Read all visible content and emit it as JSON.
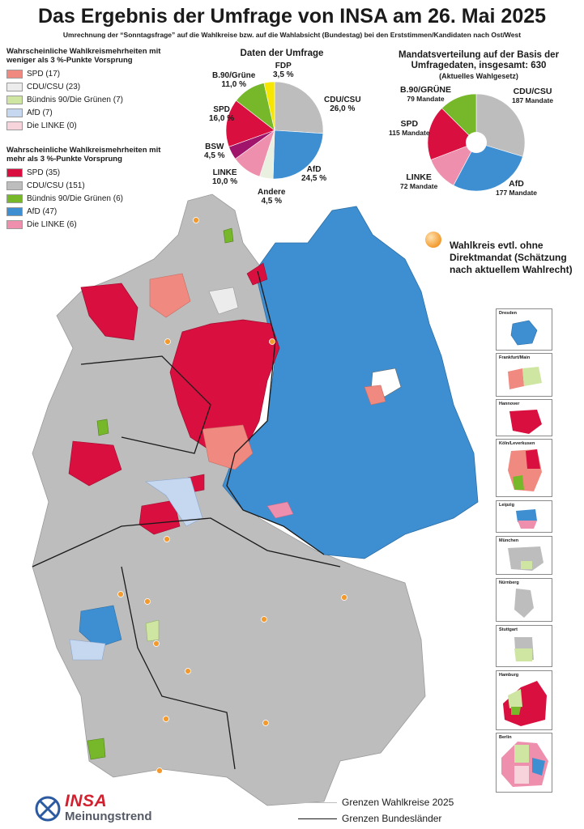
{
  "title": "Das Ergebnis der Umfrage von INSA am 26. Mai 2025",
  "subtitle": "Umrechnung der “Sonntagsfrage” auf die Wahlkreise bzw. auf die Wahlabsicht (Bundestag) bei den Erststimmen/Kandidaten nach Ost/West",
  "legend_narrow": {
    "heading": "Wahrscheinliche Wahlkreismehrheiten mit weniger als 3 %-Punkte Vorsprung",
    "items": [
      {
        "label": "SPD (17)",
        "color": "#f08a80"
      },
      {
        "label": "CDU/CSU (23)",
        "color": "#ececec"
      },
      {
        "label": "Bündnis 90/Die Grünen (7)",
        "color": "#cfe6a3"
      },
      {
        "label": "AfD (7)",
        "color": "#c6d8f0"
      },
      {
        "label": "Die LINKE (0)",
        "color": "#f7d3dc"
      }
    ]
  },
  "legend_wide": {
    "heading": "Wahrscheinliche Wahlkreismehrheiten mit mehr als 3 %-Punkte Vorsprung",
    "items": [
      {
        "label": "SPD (35)",
        "color": "#d9103f"
      },
      {
        "label": "CDU/CSU (151)",
        "color": "#bdbdbd"
      },
      {
        "label": "Bündnis 90/Die Grünen (6)",
        "color": "#77b82a"
      },
      {
        "label": "AfD (47)",
        "color": "#3e8fd1"
      },
      {
        "label": "Die LINKE (6)",
        "color": "#ef8fae"
      }
    ]
  },
  "poll": {
    "heading": "Daten der Umfrage",
    "slices": [
      {
        "party": "CDU/CSU",
        "value": "26,0 %",
        "share": 26.0,
        "color": "#bdbdbd"
      },
      {
        "party": "AfD",
        "value": "24,5 %",
        "share": 24.5,
        "color": "#3e8fd1"
      },
      {
        "party": "Andere",
        "value": "4,5 %",
        "share": 4.5,
        "color": "#e9f0df"
      },
      {
        "party": "LINKE",
        "value": "10,0 %",
        "share": 10.0,
        "color": "#ef8fae"
      },
      {
        "party": "BSW",
        "value": "4,5 %",
        "share": 4.5,
        "color": "#a0146c"
      },
      {
        "party": "SPD",
        "value": "16,0 %",
        "share": 16.0,
        "color": "#d9103f"
      },
      {
        "party": "B.90/Grüne",
        "value": "11,0 %",
        "share": 11.0,
        "color": "#77b82a"
      },
      {
        "party": "FDP",
        "value": "3,5 %",
        "share": 3.5,
        "color": "#f6e600"
      }
    ]
  },
  "seats": {
    "heading": "Mandatsverteilung auf der Basis der Umfragedaten, insgesamt: 630",
    "subheading": "(Aktuelles Wahlgesetz)",
    "slices": [
      {
        "party": "CDU/CSU",
        "seats_label": "187 Mandate",
        "seats": 187,
        "color": "#bdbdbd"
      },
      {
        "party": "AfD",
        "seats_label": "177 Mandate",
        "seats": 177,
        "color": "#3e8fd1"
      },
      {
        "party": "LINKE",
        "seats_label": "72 Mandate",
        "seats": 72,
        "color": "#ef8fae"
      },
      {
        "party": "SPD",
        "seats_label": "115 Mandate",
        "seats": 115,
        "color": "#d9103f"
      },
      {
        "party": "B.90/GRÜNE",
        "seats_label": "79 Mandate",
        "seats": 79,
        "color": "#77b82a"
      }
    ]
  },
  "note": "Wahlkreis evtl. ohne Direktmandat (Schätzung nach aktuellem Wahlrecht)",
  "insets": [
    {
      "city": "Dresden"
    },
    {
      "city": "Frankfurt/Main"
    },
    {
      "city": "Hannover"
    },
    {
      "city": "Köln/Leverkusen"
    },
    {
      "city": "Leipzig"
    },
    {
      "city": "München"
    },
    {
      "city": "Nürnberg"
    },
    {
      "city": "Stuttgart"
    },
    {
      "city": "Hamburg"
    },
    {
      "city": "Berlin"
    }
  ],
  "borders": {
    "wahlkreise": "Grenzen Wahlkreise 2025",
    "bundeslaender": "Grenzen Bundesländer"
  },
  "logo": {
    "brand": "INSA",
    "sub": "Meinungstrend"
  },
  "colors": {
    "east_afd": "#3e8fd1",
    "west_cdu": "#bdbdbd",
    "spd": "#d9103f",
    "marker": "#f39a2f"
  }
}
